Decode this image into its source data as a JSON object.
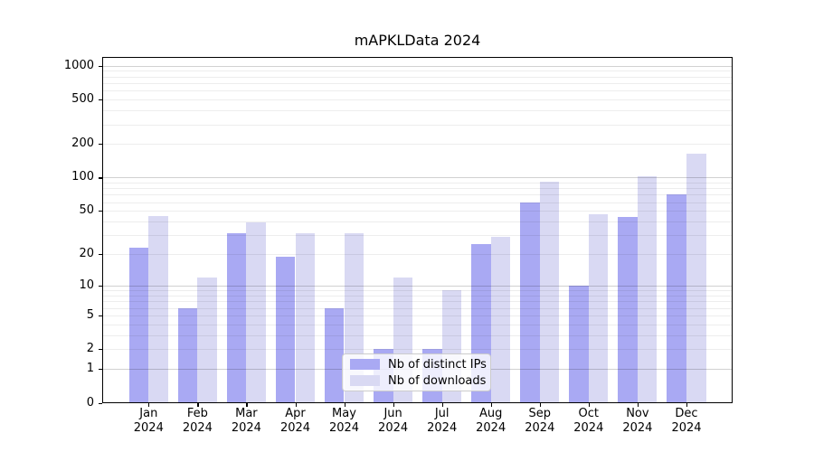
{
  "figure": {
    "title": "mAPKLData 2024"
  },
  "chart_data": {
    "type": "bar",
    "title": "mAPKLData 2024",
    "subtitle": "",
    "xlabel": "",
    "ylabel": "",
    "scale": "log10(1+y) pseudo-log",
    "categories": [
      "Jan",
      "Feb",
      "Mar",
      "Apr",
      "May",
      "Jun",
      "Jul",
      "Aug",
      "Sep",
      "Oct",
      "Nov",
      "Dec"
    ],
    "x_year_label": "2024",
    "series": [
      {
        "name": "Nb of distinct IPs",
        "color": "#a9a9f3",
        "values": [
          23,
          6,
          31,
          19,
          6,
          2,
          2,
          25,
          60,
          10,
          44,
          70
        ]
      },
      {
        "name": "Nb of downloads",
        "color": "#d9d9f3",
        "values": [
          45,
          12,
          39,
          31,
          31,
          12,
          9,
          29,
          92,
          47,
          102,
          163
        ]
      }
    ],
    "y_ticks": [
      1000,
      500,
      200,
      100,
      50,
      20,
      10,
      5,
      2,
      1,
      0
    ],
    "ylim": [
      0,
      1195
    ],
    "grid": "on",
    "grid_values_major": [
      1,
      10,
      100,
      1000
    ],
    "grid_values_minor": [
      2,
      3,
      4,
      5,
      6,
      7,
      8,
      9,
      20,
      30,
      40,
      50,
      60,
      70,
      80,
      90,
      200,
      300,
      400,
      500,
      600,
      700,
      800,
      900
    ],
    "legend_position": "lower-center",
    "colors": {
      "bar_distinct_ips": "#a9a9f3",
      "bar_downloads": "#d9d9f3",
      "grid_major": "rgba(0,0,0,0.18)",
      "grid_minor": "rgba(0,0,0,0.07)",
      "axis": "#000000",
      "legend_border": "#cccccc"
    }
  }
}
